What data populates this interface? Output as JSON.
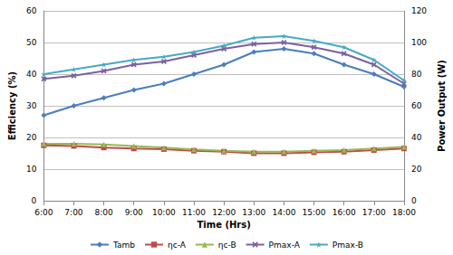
{
  "chart_data": {
    "type": "line",
    "x_label": "Time (Hrs)",
    "y_label": "Efficiency (%)",
    "y2_label": "Power Output (W)",
    "categories": [
      "6:00",
      "7:00",
      "8:00",
      "9:00",
      "10:00",
      "11:00",
      "12:00",
      "13:00",
      "14:00",
      "15:00",
      "16:00",
      "17:00",
      "18:00"
    ],
    "series": [
      {
        "name": "Tamb",
        "color": "#4a7ebb",
        "marker": "diamond",
        "values": [
          27,
          30,
          32.5,
          35,
          37,
          40,
          43,
          47,
          48,
          46.5,
          43,
          40,
          36
        ]
      },
      {
        "name": "ηc-A",
        "color": "#be4b48",
        "marker": "square",
        "values": [
          17.5,
          17.3,
          16.8,
          16.5,
          16.3,
          15.8,
          15.5,
          15,
          15,
          15.3,
          15.5,
          16,
          16.5
        ]
      },
      {
        "name": "ηc-B",
        "color": "#98b954",
        "marker": "triangle",
        "values": [
          18,
          18,
          17.8,
          17.3,
          16.8,
          16.2,
          15.8,
          15.5,
          15.5,
          15.8,
          16,
          16.5,
          17
        ]
      },
      {
        "name": "Pmax-A",
        "color": "#7d60a0",
        "marker": "x",
        "axis": "y2",
        "values": [
          77,
          79,
          82,
          86,
          88,
          92,
          96,
          99,
          100,
          97,
          93,
          86,
          74
        ]
      },
      {
        "name": "Pmax-B",
        "color": "#46aac5",
        "marker": "star",
        "axis": "y2",
        "values": [
          80,
          83,
          86,
          89,
          91,
          94,
          98,
          103,
          104,
          101,
          97,
          89,
          76
        ]
      }
    ],
    "ylim": [
      0,
      60
    ],
    "yticks": [
      0,
      10,
      20,
      30,
      40,
      50,
      60
    ],
    "y2lim": [
      0,
      120
    ],
    "y2ticks": [
      0,
      20,
      40,
      60,
      80,
      100,
      120
    ],
    "grid": true,
    "legend": "bottom"
  }
}
